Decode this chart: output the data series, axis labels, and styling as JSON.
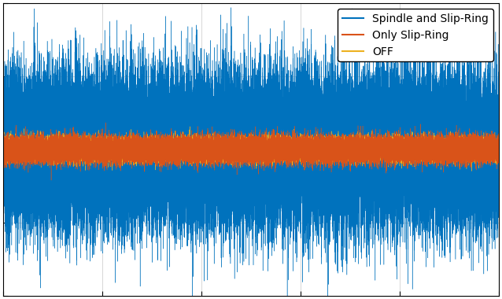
{
  "title": "",
  "xlabel": "",
  "ylabel": "",
  "legend_entries": [
    "Spindle and Slip-Ring",
    "Only Slip-Ring",
    "OFF"
  ],
  "colors": {
    "spindle": "#0072BD",
    "slip_ring": "#D95319",
    "off": "#EDB120"
  },
  "n_points": 50000,
  "spindle_std": 0.38,
  "slip_ring_std": 0.065,
  "off_std": 0.055,
  "ylim": [
    -1.5,
    1.5
  ],
  "xlim": [
    0,
    1
  ],
  "background_color": "#ffffff",
  "grid": true,
  "legend_loc": "upper right",
  "figsize": [
    6.38,
    3.8
  ],
  "dpi": 100,
  "line_width": 0.3
}
